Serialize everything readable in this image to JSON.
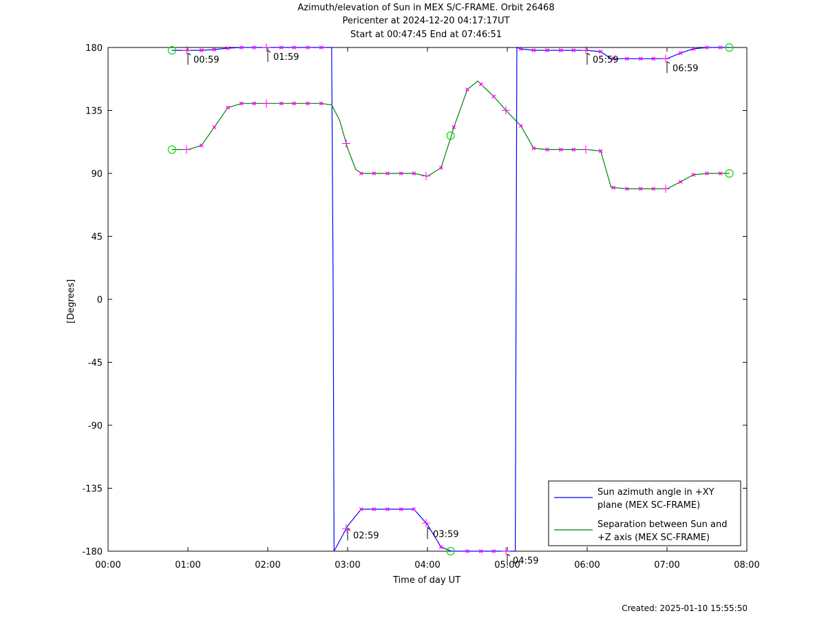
{
  "title": {
    "line1": "Azimuth/elevation of Sun in MEX S/C-FRAME.  Orbit 26468",
    "line2": "Pericenter at 2024-12-20 04:17:17UT",
    "line3": "Start at 00:47:45 End at 07:46:51"
  },
  "footer": {
    "created": "Created: 2025-01-10 15:55:50"
  },
  "colors": {
    "azimuth": "#0000ff",
    "separation": "#008000",
    "markers": "#ff00ff",
    "circles": "#00dd00"
  },
  "chart_data": {
    "type": "line",
    "xlabel": "Time of day UT",
    "ylabel": "[Degrees]",
    "xlim": [
      0,
      8
    ],
    "ylim": [
      -180,
      180
    ],
    "x_tick_labels": [
      "00:00",
      "01:00",
      "02:00",
      "03:00",
      "04:00",
      "05:00",
      "06:00",
      "07:00",
      "08:00"
    ],
    "y_ticks": [
      180,
      135,
      90,
      45,
      0,
      -45,
      -90,
      -135,
      -180
    ],
    "legend_position": "bottom-right",
    "series": [
      {
        "name": "Sun azimuth angle in +XY plane (MEX SC-FRAME)",
        "legend_line1": "Sun azimuth angle in +XY",
        "legend_line2": "plane (MEX SC-FRAME)",
        "color": "#0000ff",
        "x": [
          0.8,
          1.0,
          1.17,
          1.33,
          1.5,
          1.67,
          1.83,
          2.0,
          2.17,
          2.33,
          2.5,
          2.67,
          2.8,
          2.82,
          2.83,
          3.0,
          3.17,
          3.33,
          3.5,
          3.67,
          3.83,
          4.0,
          4.17,
          4.3,
          4.33,
          4.5,
          4.67,
          4.83,
          5.0,
          5.1,
          5.12,
          5.17,
          5.33,
          5.5,
          5.67,
          5.83,
          6.0,
          6.17,
          6.3,
          6.5,
          6.67,
          6.83,
          7.0,
          7.17,
          7.33,
          7.5,
          7.67,
          7.78
        ],
        "y": [
          178,
          178,
          178,
          178.5,
          179.5,
          180,
          180,
          180,
          180,
          180,
          180,
          180,
          180,
          0,
          -180,
          -162,
          -150,
          -150,
          -150,
          -150,
          -150,
          -161,
          -177,
          -180,
          -180,
          -180,
          -180,
          -180,
          -180,
          -180,
          180,
          179,
          178,
          178,
          178,
          178,
          178,
          177,
          172,
          172,
          172,
          172,
          172,
          176,
          179,
          180,
          180,
          180
        ]
      },
      {
        "name": "Separation between Sun and +Z axis (MEX SC-FRAME)",
        "legend_line1": "Separation between Sun and",
        "legend_line2": "+Z axis (MEX SC-FRAME)",
        "color": "#008000",
        "x": [
          0.8,
          1.0,
          1.17,
          1.33,
          1.5,
          1.67,
          1.83,
          2.0,
          2.17,
          2.33,
          2.5,
          2.67,
          2.8,
          2.9,
          3.0,
          3.1,
          3.17,
          3.33,
          3.5,
          3.67,
          3.83,
          4.0,
          4.17,
          4.3,
          4.33,
          4.5,
          4.63,
          4.83,
          5.0,
          5.17,
          5.33,
          5.5,
          5.67,
          5.83,
          6.0,
          6.17,
          6.3,
          6.5,
          6.67,
          6.83,
          7.0,
          7.17,
          7.33,
          7.5,
          7.67,
          7.78
        ],
        "y": [
          107,
          107,
          110,
          123,
          137,
          140,
          140,
          140,
          140,
          140,
          140,
          140,
          139,
          128,
          108,
          93,
          90,
          90,
          90,
          90,
          90,
          88,
          94,
          117,
          123,
          150,
          156,
          145,
          134,
          124,
          108,
          107,
          107,
          107,
          107,
          106,
          80,
          79,
          79,
          79,
          79,
          84,
          89,
          90,
          90,
          90
        ]
      }
    ],
    "markers": {
      "azimuth_dots_x": [
        1.17,
        1.33,
        1.5,
        1.67,
        1.83,
        2.17,
        2.33,
        2.5,
        2.67,
        3.17,
        3.33,
        3.5,
        3.67,
        3.83,
        4.17,
        4.5,
        4.67,
        4.83,
        5.17,
        5.33,
        5.5,
        5.67,
        5.83,
        6.17,
        6.33,
        6.5,
        6.67,
        6.83,
        7.17,
        7.33,
        7.5,
        7.67
      ],
      "separation_dots_x": [
        1.17,
        1.33,
        1.5,
        1.67,
        1.83,
        2.17,
        2.33,
        2.5,
        2.67,
        3.17,
        3.33,
        3.5,
        3.67,
        3.83,
        4.17,
        4.33,
        4.5,
        4.67,
        4.83,
        5.17,
        5.33,
        5.5,
        5.67,
        5.83,
        6.17,
        6.33,
        6.5,
        6.67,
        6.83,
        7.17,
        7.33,
        7.5,
        7.67
      ],
      "hour_crosses_x": [
        0.983,
        1.983,
        2.983,
        3.983,
        4.983,
        5.983,
        6.983
      ],
      "circles": [
        {
          "x": 0.8,
          "y": 178
        },
        {
          "x": 0.8,
          "y": 107
        },
        {
          "x": 4.29,
          "y": 117
        },
        {
          "x": 4.29,
          "y": -180
        },
        {
          "x": 7.78,
          "y": 180
        },
        {
          "x": 7.78,
          "y": 90
        }
      ]
    },
    "annotations": [
      {
        "x": 0.983,
        "y": 178,
        "text": "00:59"
      },
      {
        "x": 1.983,
        "y": 180,
        "text": "01:59"
      },
      {
        "x": 2.983,
        "y": -162,
        "text": "02:59"
      },
      {
        "x": 3.983,
        "y": -161,
        "text": "03:59"
      },
      {
        "x": 4.983,
        "y": -180,
        "text": "04:59"
      },
      {
        "x": 5.983,
        "y": 178,
        "text": "05:59"
      },
      {
        "x": 6.983,
        "y": 172,
        "text": "06:59"
      }
    ]
  }
}
